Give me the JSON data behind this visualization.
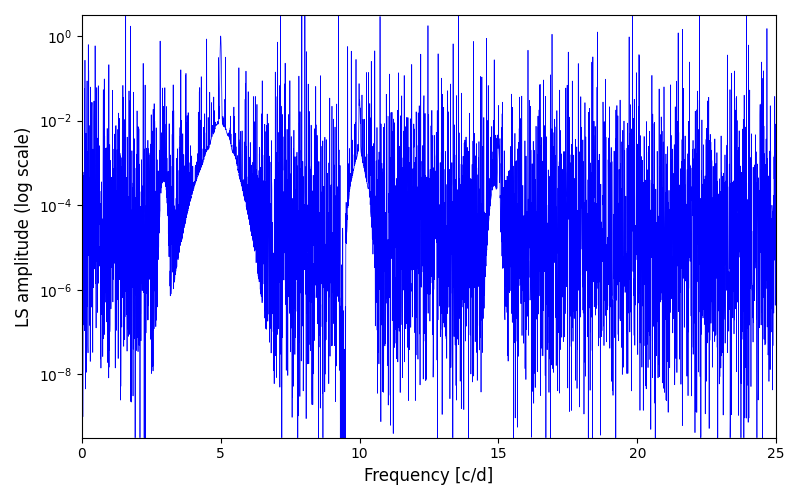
{
  "title": "",
  "xlabel": "Frequency [c/d]",
  "ylabel": "LS amplitude (log scale)",
  "line_color": "#0000ff",
  "xlim": [
    0,
    25
  ],
  "ylim_log": [
    -9.5,
    0.5
  ],
  "freq_min": 0.0,
  "freq_max": 25.0,
  "n_points": 5000,
  "seed": 7,
  "main_peak_freq": 5.0,
  "main_peak_amp": 1.0,
  "harmonic2_freq": 10.0,
  "harmonic2_amp": 0.03,
  "harmonic3_freq": 15.0,
  "harmonic3_amp": 0.003,
  "alias1_freq": 3.0,
  "alias1_amp": 0.0003,
  "background_color": "#ffffff",
  "figure_width": 8.0,
  "figure_height": 5.0,
  "dpi": 100,
  "noise_mean_log": -4.8,
  "noise_sigma_log": 1.8
}
